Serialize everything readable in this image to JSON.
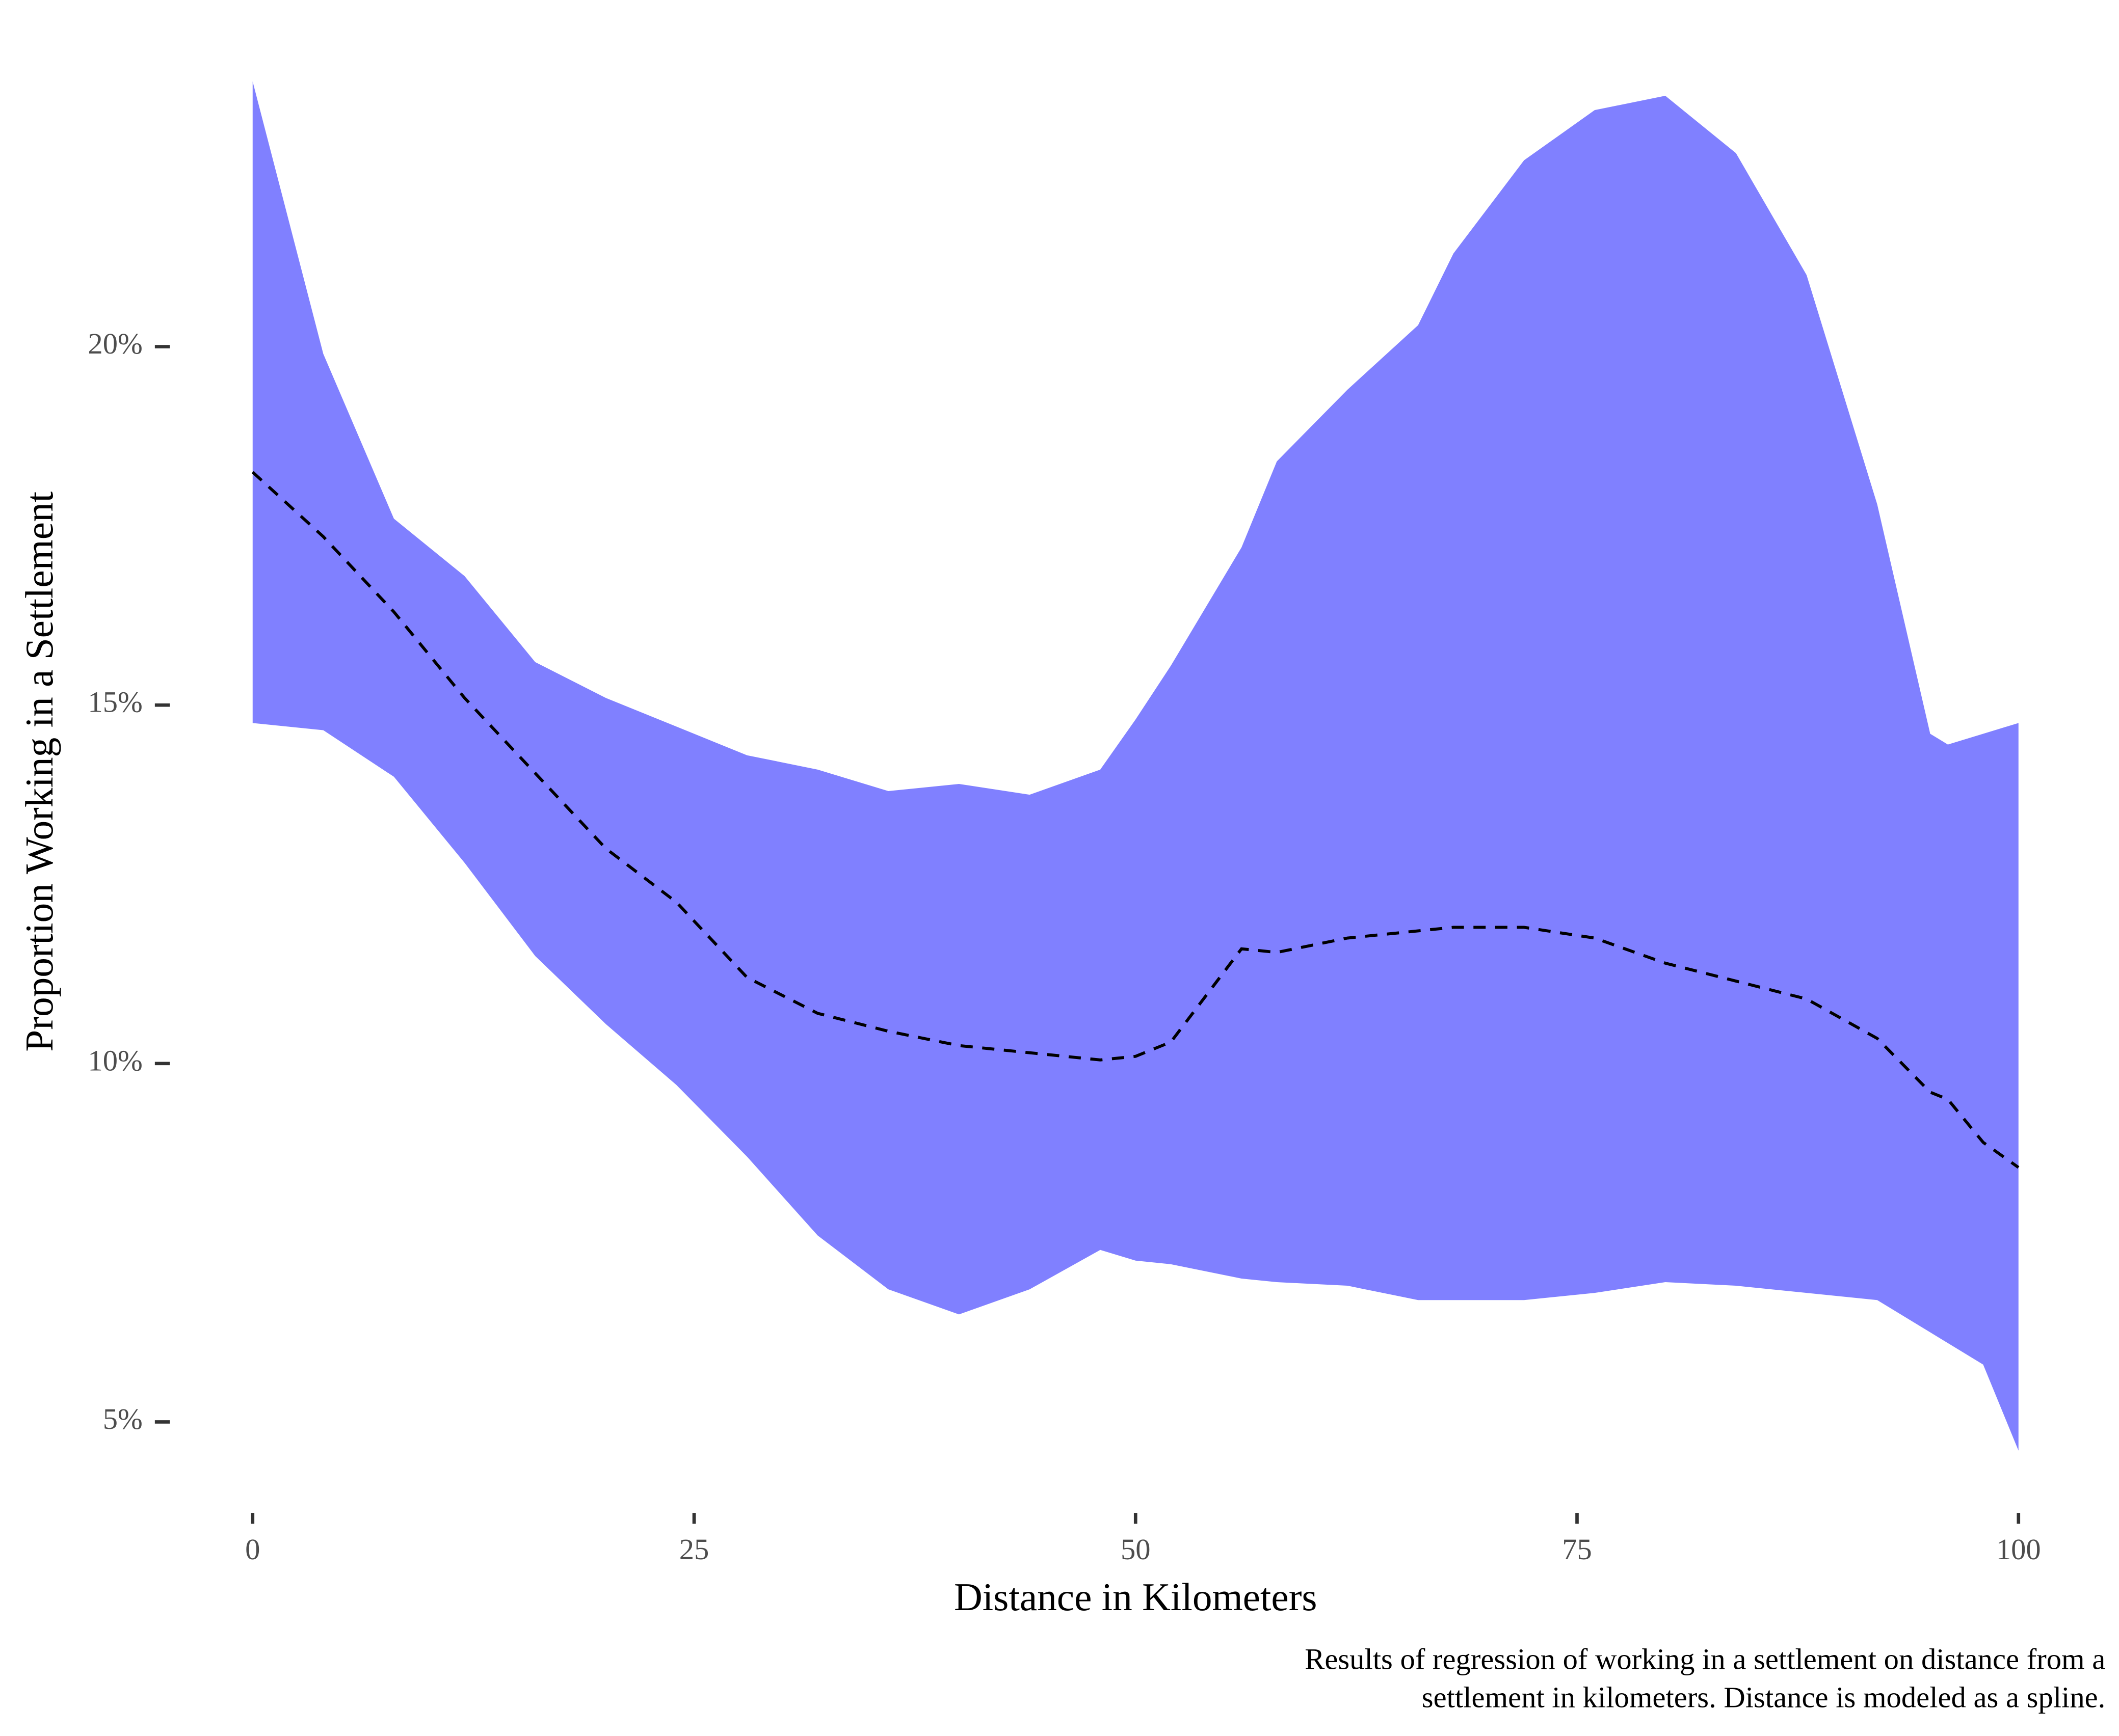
{
  "chart_data": {
    "type": "line",
    "xlabel": "Distance in Kilometers",
    "ylabel": "Proportion Working in a Settlement",
    "caption": [
      "Results of regression of working in a settlement on distance from a",
      "settlement in kilometers. Distance is modeled as a spline."
    ],
    "x": [
      0,
      4,
      8,
      12,
      16,
      20,
      24,
      28,
      32,
      36,
      40,
      44,
      48,
      50,
      52,
      56,
      58,
      62,
      66,
      68,
      72,
      76,
      80,
      84,
      88,
      92,
      95,
      96,
      98,
      100
    ],
    "band": {
      "color": "#8080ff",
      "upper": [
        23.7,
        19.9,
        17.6,
        16.8,
        15.6,
        15.1,
        14.7,
        14.3,
        14.1,
        13.8,
        13.9,
        13.75,
        14.1,
        14.8,
        15.55,
        17.2,
        18.4,
        19.4,
        20.3,
        21.3,
        22.6,
        23.3,
        23.5,
        22.7,
        21.0,
        17.8,
        14.6,
        14.45,
        14.6,
        14.75
      ],
      "lower": [
        14.75,
        14.65,
        14.0,
        12.8,
        11.5,
        10.55,
        9.7,
        8.7,
        7.6,
        6.85,
        6.5,
        6.85,
        7.4,
        7.25,
        7.2,
        7.0,
        6.95,
        6.9,
        6.7,
        6.7,
        6.7,
        6.8,
        6.95,
        6.9,
        6.8,
        6.7,
        6.25,
        6.1,
        5.8,
        4.6
      ]
    },
    "series": [
      {
        "color": "#000000",
        "dashed": true,
        "values": [
          18.25,
          17.35,
          16.3,
          15.1,
          14.05,
          13.0,
          12.25,
          11.2,
          10.7,
          10.45,
          10.25,
          10.15,
          10.05,
          10.1,
          10.3,
          11.6,
          11.55,
          11.75,
          11.85,
          11.9,
          11.9,
          11.75,
          11.4,
          11.15,
          10.9,
          10.35,
          9.6,
          9.5,
          8.9,
          8.55
        ]
      }
    ],
    "xlim": [
      0,
      100
    ],
    "xticks": [
      0,
      25,
      50,
      75,
      100
    ],
    "ylim": [
      4.1,
      23.8
    ],
    "yticks": [
      {
        "value": 5,
        "label": "5%"
      },
      {
        "value": 10,
        "label": "10%"
      },
      {
        "value": 15,
        "label": "15%"
      },
      {
        "value": 20,
        "label": "20%"
      }
    ]
  }
}
